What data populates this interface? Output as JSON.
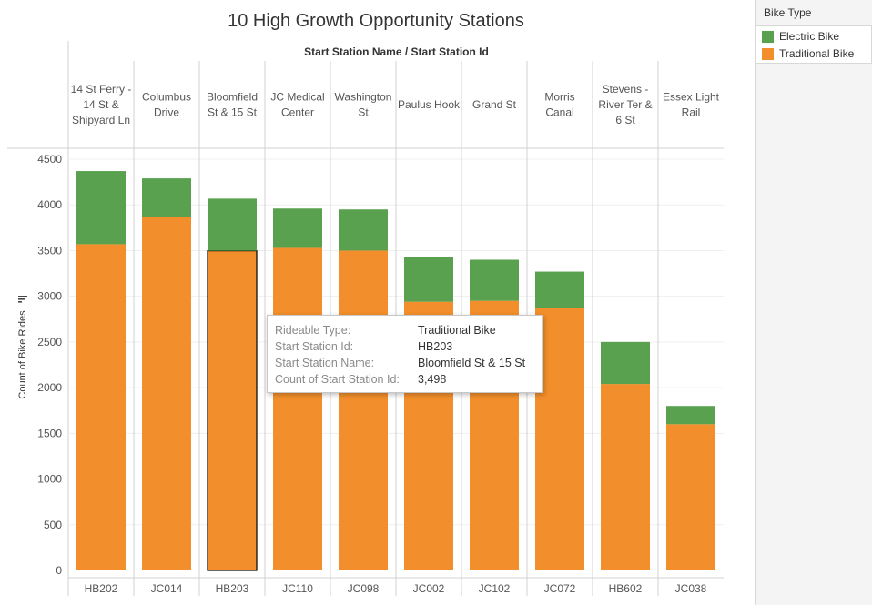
{
  "chart_data": {
    "type": "bar",
    "stacked": true,
    "title": "10 High Growth Opportunity Stations",
    "header_caption": "Start Station Name  /  Start Station Id",
    "ylabel": "Count of Bike Rides",
    "xlabel": "",
    "ylim": [
      0,
      4600
    ],
    "yticks": [
      0,
      500,
      1000,
      1500,
      2000,
      2500,
      3000,
      3500,
      4000,
      4500
    ],
    "grid": true,
    "categories": [
      {
        "name_lines": [
          "14 St Ferry -",
          "14 St &",
          "Shipyard Ln"
        ],
        "id": "HB202"
      },
      {
        "name_lines": [
          "Columbus",
          "Drive"
        ],
        "id": "JC014"
      },
      {
        "name_lines": [
          "Bloomfield",
          "St & 15 St"
        ],
        "id": "HB203"
      },
      {
        "name_lines": [
          "JC Medical",
          "Center"
        ],
        "id": "JC110"
      },
      {
        "name_lines": [
          "Washington",
          "St"
        ],
        "id": "JC098"
      },
      {
        "name_lines": [
          "Paulus Hook"
        ],
        "id": "JC002"
      },
      {
        "name_lines": [
          "Grand St"
        ],
        "id": "JC102"
      },
      {
        "name_lines": [
          "Morris",
          "Canal"
        ],
        "id": "JC072"
      },
      {
        "name_lines": [
          "Stevens -",
          "River Ter &",
          "6 St"
        ],
        "id": "HB602"
      },
      {
        "name_lines": [
          "Essex Light",
          "Rail"
        ],
        "id": "JC038"
      }
    ],
    "series": [
      {
        "name": "Traditional Bike",
        "color": "#f28e2b",
        "values": [
          3570,
          3870,
          3498,
          3530,
          3500,
          2940,
          2950,
          2870,
          2040,
          1600
        ]
      },
      {
        "name": "Electric Bike",
        "color": "#59a14f",
        "values": [
          800,
          420,
          570,
          430,
          450,
          490,
          450,
          400,
          460,
          200
        ]
      }
    ],
    "highlight": {
      "category_index": 2,
      "series": "Traditional Bike"
    }
  },
  "legend": {
    "title": "Bike Type",
    "items": [
      {
        "label": "Electric Bike",
        "color": "#59a14f"
      },
      {
        "label": "Traditional Bike",
        "color": "#f28e2b"
      }
    ]
  },
  "tooltip": {
    "rows": [
      {
        "label": "Rideable Type:",
        "value": "Traditional Bike"
      },
      {
        "label": "Start Station Id:",
        "value": "HB203"
      },
      {
        "label": "Start Station Name:",
        "value": "Bloomfield St & 15 St"
      },
      {
        "label": "Count of Start Station Id:",
        "value": "3,498"
      }
    ]
  }
}
